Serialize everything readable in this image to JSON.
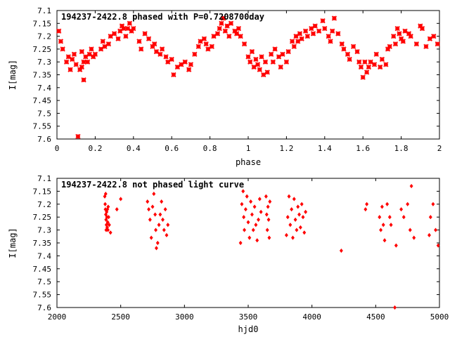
{
  "chart_data": [
    {
      "type": "scatter",
      "title": "194237-2422.8 phased with P=0.7208700day",
      "xlabel": "phase",
      "ylabel": "I[mag]",
      "xlim": [
        0,
        2
      ],
      "ylim": [
        7.6,
        7.1
      ],
      "y_inverted": true,
      "xticks": [
        0,
        0.2,
        0.4,
        0.6,
        0.8,
        1,
        1.2,
        1.4,
        1.6,
        1.8,
        2
      ],
      "xtick_labels": [
        "0",
        "0.2",
        "0.4",
        "0.6",
        "0.8",
        "1",
        "1.2",
        "1.4",
        "1.6",
        "1.8",
        "2"
      ],
      "yticks": [
        7.1,
        7.15,
        7.2,
        7.25,
        7.3,
        7.35,
        7.4,
        7.45,
        7.5,
        7.55,
        7.6
      ],
      "ytick_labels": [
        "7.1",
        "7.15",
        "7.2",
        "7.25",
        "7.3",
        "7.35",
        "7.4",
        "7.45",
        "7.5",
        "7.55",
        "7.6"
      ],
      "marker_color": "#ff0000",
      "x": [
        0.01,
        0.02,
        0.03,
        0.05,
        0.06,
        0.07,
        0.08,
        0.09,
        0.1,
        0.11,
        0.12,
        0.13,
        0.13,
        0.14,
        0.14,
        0.15,
        0.16,
        0.17,
        0.18,
        0.19,
        0.2,
        0.23,
        0.24,
        0.25,
        0.27,
        0.28,
        0.3,
        0.32,
        0.33,
        0.34,
        0.35,
        0.36,
        0.37,
        0.38,
        0.39,
        0.4,
        0.43,
        0.44,
        0.46,
        0.48,
        0.5,
        0.51,
        0.52,
        0.54,
        0.55,
        0.57,
        0.58,
        0.6,
        0.61,
        0.63,
        0.65,
        0.67,
        0.69,
        0.7,
        0.72,
        0.74,
        0.75,
        0.77,
        0.78,
        0.79,
        0.81,
        0.82,
        0.84,
        0.85,
        0.86,
        0.87,
        0.88,
        0.89,
        0.9,
        0.91,
        0.93,
        0.94,
        0.95,
        0.96,
        0.98,
        1.0,
        1.01,
        1.02,
        1.03,
        1.04,
        1.05,
        1.06,
        1.07,
        1.08,
        1.09,
        1.1,
        1.12,
        1.13,
        1.14,
        1.16,
        1.17,
        1.18,
        1.2,
        1.21,
        1.23,
        1.24,
        1.25,
        1.26,
        1.27,
        1.28,
        1.3,
        1.31,
        1.33,
        1.34,
        1.35,
        1.37,
        1.39,
        1.4,
        1.42,
        1.43,
        1.44,
        1.45,
        1.47,
        1.49,
        1.5,
        1.52,
        1.53,
        1.55,
        1.57,
        1.58,
        1.59,
        1.6,
        1.61,
        1.62,
        1.63,
        1.64,
        1.66,
        1.67,
        1.69,
        1.7,
        1.72,
        1.73,
        1.74,
        1.76,
        1.77,
        1.78,
        1.79,
        1.8,
        1.81,
        1.82,
        1.84,
        1.85,
        1.88,
        1.9,
        1.91,
        1.93,
        1.95,
        1.97,
        1.99
      ],
      "y": [
        7.18,
        7.22,
        7.25,
        7.3,
        7.28,
        7.33,
        7.29,
        7.27,
        7.31,
        7.59,
        7.33,
        7.32,
        7.26,
        7.3,
        7.37,
        7.28,
        7.3,
        7.27,
        7.25,
        7.28,
        7.27,
        7.25,
        7.22,
        7.24,
        7.23,
        7.2,
        7.19,
        7.21,
        7.18,
        7.16,
        7.17,
        7.2,
        7.17,
        7.15,
        7.18,
        7.17,
        7.22,
        7.25,
        7.19,
        7.21,
        7.24,
        7.23,
        7.26,
        7.27,
        7.25,
        7.28,
        7.3,
        7.29,
        7.35,
        7.32,
        7.31,
        7.3,
        7.33,
        7.31,
        7.27,
        7.24,
        7.22,
        7.21,
        7.23,
        7.25,
        7.24,
        7.2,
        7.19,
        7.17,
        7.15,
        7.13,
        7.18,
        7.16,
        7.2,
        7.15,
        7.18,
        7.19,
        7.17,
        7.2,
        7.23,
        7.28,
        7.3,
        7.26,
        7.32,
        7.29,
        7.31,
        7.33,
        7.28,
        7.35,
        7.3,
        7.34,
        7.27,
        7.3,
        7.25,
        7.28,
        7.32,
        7.27,
        7.3,
        7.26,
        7.22,
        7.24,
        7.2,
        7.22,
        7.19,
        7.21,
        7.18,
        7.2,
        7.17,
        7.19,
        7.16,
        7.18,
        7.14,
        7.17,
        7.2,
        7.22,
        7.18,
        7.13,
        7.19,
        7.23,
        7.25,
        7.27,
        7.29,
        7.24,
        7.26,
        7.3,
        7.32,
        7.36,
        7.3,
        7.34,
        7.32,
        7.3,
        7.31,
        7.27,
        7.32,
        7.29,
        7.31,
        7.25,
        7.24,
        7.2,
        7.23,
        7.17,
        7.19,
        7.21,
        7.22,
        7.18,
        7.19,
        7.2,
        7.23,
        7.16,
        7.17,
        7.24,
        7.21,
        7.2,
        7.23
      ]
    },
    {
      "type": "scatter",
      "title": "194237-2422.8 not phased light curve",
      "xlabel": "hjd0",
      "ylabel": "I[mag]",
      "xlim": [
        2000,
        5000
      ],
      "ylim": [
        7.6,
        7.1
      ],
      "y_inverted": true,
      "xticks": [
        2000,
        2500,
        3000,
        3500,
        4000,
        4500,
        5000
      ],
      "xtick_labels": [
        "2000",
        "2500",
        "3000",
        "3500",
        "4000",
        "4500",
        "5000"
      ],
      "yticks": [
        7.1,
        7.15,
        7.2,
        7.25,
        7.3,
        7.35,
        7.4,
        7.45,
        7.5,
        7.55,
        7.6
      ],
      "ytick_labels": [
        "7.1",
        "7.15",
        "7.2",
        "7.25",
        "7.3",
        "7.35",
        "7.4",
        "7.45",
        "7.5",
        "7.55",
        "7.6"
      ],
      "marker_color": "#ff0000",
      "x": [
        2375,
        2378,
        2380,
        2382,
        2383,
        2385,
        2386,
        2388,
        2390,
        2392,
        2394,
        2396,
        2398,
        2400,
        2402,
        2405,
        2410,
        2420,
        2470,
        2500,
        2710,
        2720,
        2730,
        2740,
        2750,
        2760,
        2770,
        2775,
        2780,
        2790,
        2800,
        2810,
        2820,
        2830,
        2840,
        2850,
        2860,
        2870,
        3440,
        3450,
        3460,
        3465,
        3470,
        3480,
        3490,
        3500,
        3510,
        3520,
        3530,
        3540,
        3550,
        3560,
        3570,
        3580,
        3590,
        3600,
        3640,
        3645,
        3650,
        3655,
        3660,
        3665,
        3670,
        3800,
        3810,
        3820,
        3830,
        3840,
        3850,
        3860,
        3870,
        3880,
        3890,
        3900,
        3910,
        3920,
        3930,
        3940,
        3950,
        4230,
        4420,
        4430,
        4530,
        4540,
        4550,
        4560,
        4570,
        4590,
        4610,
        4620,
        4650,
        4660,
        4700,
        4720,
        4750,
        4770,
        4780,
        4800,
        4920,
        4930,
        4950,
        4970,
        4990
      ],
      "y": [
        7.17,
        7.2,
        7.22,
        7.16,
        7.24,
        7.26,
        7.3,
        7.28,
        7.23,
        7.25,
        7.29,
        7.22,
        7.27,
        7.3,
        7.21,
        7.25,
        7.28,
        7.31,
        7.22,
        7.18,
        7.19,
        7.22,
        7.26,
        7.33,
        7.21,
        7.16,
        7.24,
        7.3,
        7.37,
        7.35,
        7.28,
        7.24,
        7.19,
        7.26,
        7.3,
        7.22,
        7.32,
        7.28,
        7.35,
        7.2,
        7.15,
        7.25,
        7.3,
        7.22,
        7.17,
        7.27,
        7.33,
        7.19,
        7.24,
        7.3,
        7.21,
        7.28,
        7.34,
        7.26,
        7.18,
        7.23,
        7.17,
        7.24,
        7.3,
        7.21,
        7.26,
        7.33,
        7.19,
        7.32,
        7.25,
        7.17,
        7.28,
        7.22,
        7.33,
        7.18,
        7.26,
        7.3,
        7.21,
        7.24,
        7.29,
        7.2,
        7.25,
        7.31,
        7.23,
        7.38,
        7.22,
        7.2,
        7.25,
        7.3,
        7.21,
        7.28,
        7.34,
        7.2,
        7.25,
        7.28,
        7.6,
        7.36,
        7.22,
        7.25,
        7.2,
        7.3,
        7.13,
        7.33,
        7.32,
        7.25,
        7.2,
        7.3,
        7.36
      ]
    }
  ]
}
